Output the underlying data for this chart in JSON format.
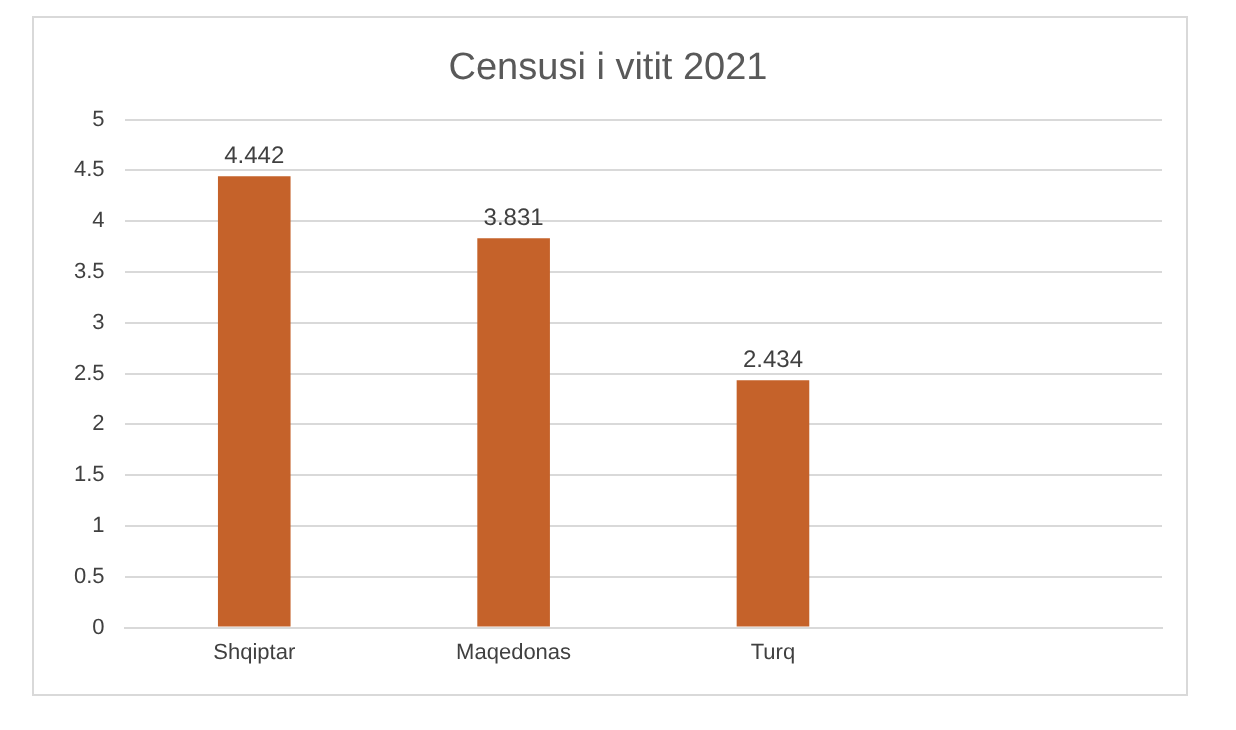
{
  "chart_data": {
    "type": "bar",
    "title": "Censusi i vitit 2021",
    "categories": [
      "Shqiptar",
      "Maqedonas",
      "Turq",
      null
    ],
    "values": [
      4.442,
      3.831,
      2.434,
      null
    ],
    "color": "#c5622a",
    "ylim": [
      0,
      5
    ],
    "yticks": [
      0,
      0.5,
      1,
      1.5,
      2,
      2.5,
      3,
      3.5,
      4,
      4.5,
      5
    ],
    "grid": "y",
    "data_labels": true
  }
}
